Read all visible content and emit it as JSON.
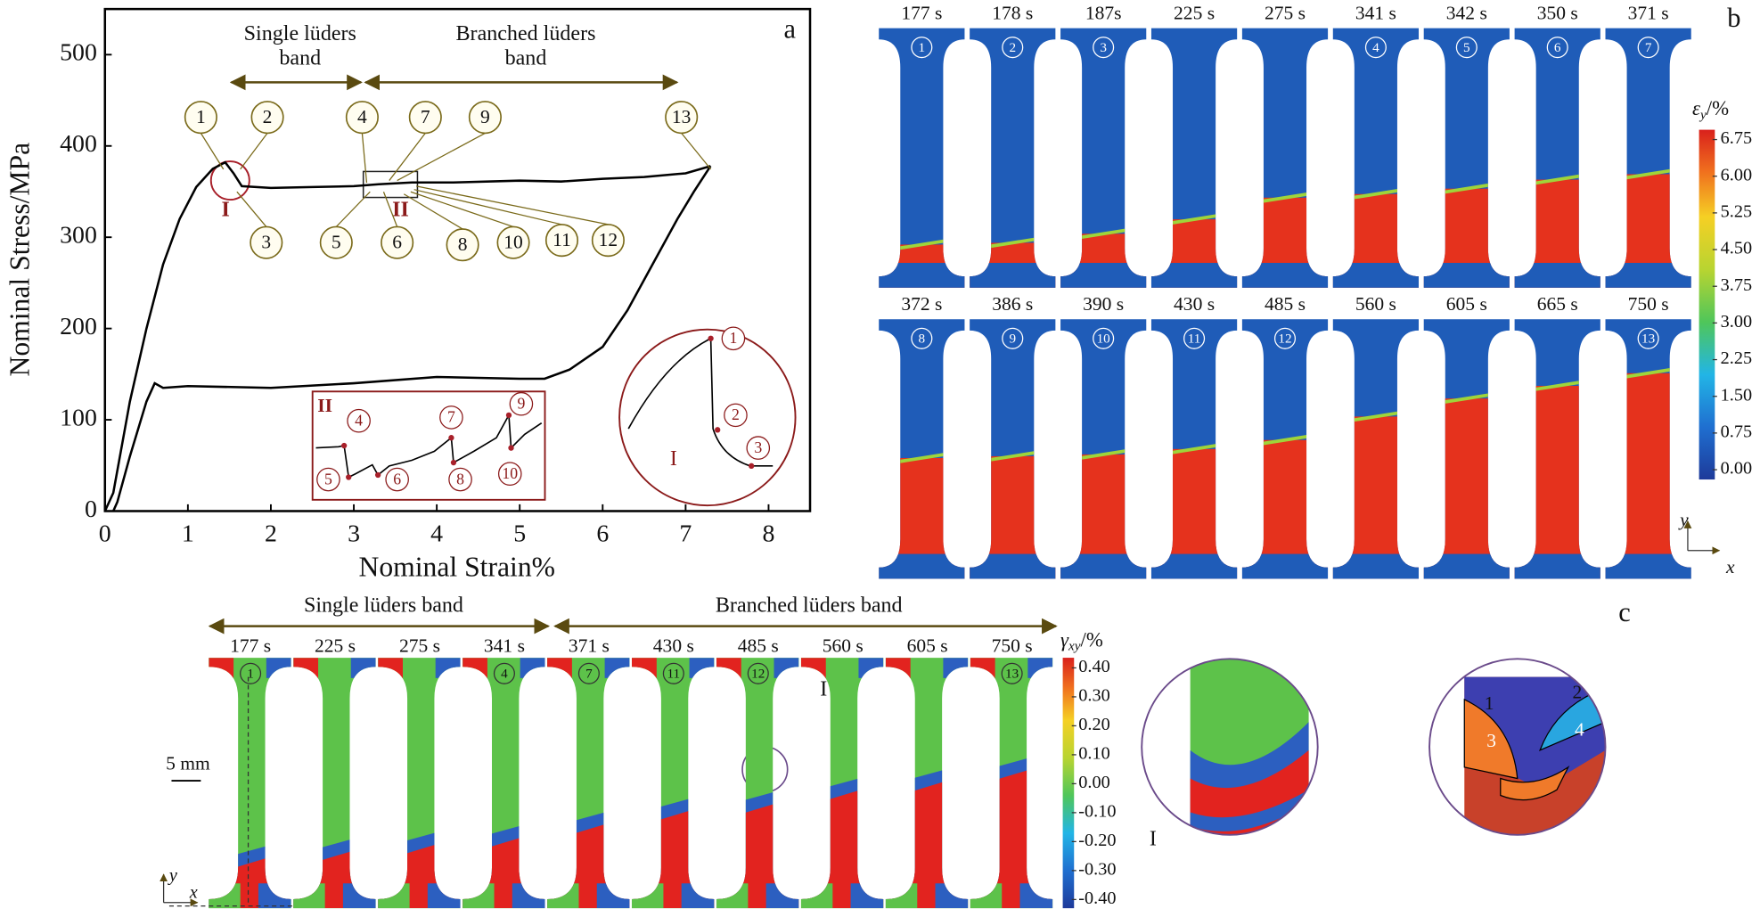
{
  "chart_data": {
    "type": "line",
    "panel_label": "a",
    "xlabel": "Nominal Strain%",
    "ylabel": "Nominal Stress/MPa",
    "xlim": [
      0,
      8.5
    ],
    "xticks": [
      0,
      1,
      2,
      3,
      4,
      5,
      6,
      7,
      8
    ],
    "ylim": [
      0,
      550
    ],
    "yticks": [
      0,
      100,
      200,
      300,
      400,
      500
    ],
    "series": [
      {
        "color": "#000000",
        "x": [
          0,
          0.1,
          0.3,
          0.5,
          0.7,
          0.9,
          1.1,
          1.3,
          1.45,
          1.55,
          1.65,
          2,
          2.5,
          3,
          3.3,
          3.7,
          4.2,
          5,
          5.5,
          6,
          6.5,
          7,
          7.3
        ],
        "values": [
          0,
          20,
          120,
          200,
          270,
          320,
          355,
          375,
          382,
          370,
          356,
          354,
          355,
          356,
          358,
          360,
          360,
          362,
          361,
          364,
          366,
          370,
          378
        ]
      },
      {
        "color": "#000000",
        "x": [
          0.1,
          0.15,
          0.3,
          0.5,
          0.6,
          0.7,
          1,
          2,
          3,
          4,
          5,
          5.3,
          5.6,
          6,
          6.3,
          6.6,
          6.9,
          7.1,
          7.3
        ],
        "values": [
          0,
          10,
          60,
          120,
          140,
          135,
          137,
          135,
          140,
          147,
          145,
          145,
          155,
          180,
          220,
          270,
          320,
          350,
          378
        ]
      }
    ],
    "band_labels": [
      [
        "Single lüders",
        "band"
      ],
      [
        "Branched lüders",
        "band"
      ]
    ],
    "stage_markers": [
      "1",
      "2",
      "3",
      "4",
      "5",
      "6",
      "7",
      "8",
      "9",
      "10",
      "11",
      "12",
      "13"
    ],
    "zoom_labels": [
      "I",
      "II"
    ],
    "inset_II": {
      "label": "II",
      "markers": [
        "4",
        "5",
        "6",
        "7",
        "8",
        "9",
        "10"
      ]
    },
    "inset_I": {
      "label": "I",
      "markers": [
        "1",
        "2",
        "3"
      ]
    }
  },
  "panel_b": {
    "label": "b",
    "frames": [
      {
        "time": "177 s",
        "marker": "1"
      },
      {
        "time": "178 s",
        "marker": "2"
      },
      {
        "time": "187s",
        "marker": "3"
      },
      {
        "time": "225 s"
      },
      {
        "time": "275 s"
      },
      {
        "time": "341 s",
        "marker": "4"
      },
      {
        "time": "342 s",
        "marker": "5"
      },
      {
        "time": "350 s",
        "marker": "6"
      },
      {
        "time": "371 s",
        "marker": "7"
      },
      {
        "time": "372 s",
        "marker": "8"
      },
      {
        "time": "386 s",
        "marker": "9"
      },
      {
        "time": "390 s",
        "marker": "10"
      },
      {
        "time": "430 s",
        "marker": "11"
      },
      {
        "time": "485 s",
        "marker": "12"
      },
      {
        "time": "560 s"
      },
      {
        "time": "605 s"
      },
      {
        "time": "665 s"
      },
      {
        "time": "750 s",
        "marker": "13"
      }
    ],
    "colorbar": {
      "label": "ε",
      "label_sub": "y",
      "label_unit": "/%",
      "clim": [
        -0.2,
        6.95
      ],
      "ticks": [
        {
          "value": 0,
          "label": "0.00"
        },
        0.75,
        {
          "value": 1.5,
          "label": "1.50"
        },
        2.25,
        {
          "value": 3,
          "label": "3.00"
        },
        3.75,
        {
          "value": 4.5,
          "label": "4.50"
        },
        5.25,
        {
          "value": 6,
          "label": "6.00"
        },
        6.75
      ]
    },
    "axes": {
      "y": "y",
      "x": "x"
    }
  },
  "panel_c": {
    "label": "c",
    "band_labels": [
      "Single lüders band",
      "Branched lüders band"
    ],
    "frames": [
      {
        "time": "177 s",
        "marker": "1"
      },
      {
        "time": "225 s"
      },
      {
        "time": "275 s"
      },
      {
        "time": "341 s",
        "marker": "4"
      },
      {
        "time": "371 s",
        "marker": "7"
      },
      {
        "time": "430 s",
        "marker": "11"
      },
      {
        "time": "485 s",
        "marker": "12"
      },
      {
        "time": "560 s"
      },
      {
        "time": "605 s"
      },
      {
        "time": "750 s",
        "marker": "13"
      }
    ],
    "colorbar": {
      "label": "γ",
      "label_sub": "xy",
      "label_unit": "/%",
      "clim": [
        -0.43,
        0.435
      ],
      "ticks": [
        {
          "value": 0.4,
          "label": "0.40"
        },
        {
          "value": 0.3,
          "label": "0.30"
        },
        {
          "value": 0.2,
          "label": "0.20"
        },
        {
          "value": 0.1,
          "label": "0.10"
        },
        {
          "value": 0,
          "label": "0.00"
        },
        {
          "value": -0.1,
          "label": "-0.10"
        },
        {
          "value": -0.2,
          "label": "-0.20"
        },
        {
          "value": -0.3,
          "label": "-0.30"
        },
        {
          "value": -0.4,
          "label": "-0.40"
        }
      ]
    },
    "scale_bar": "5 mm",
    "zoom_label": "I",
    "zoom_circle_label": "I",
    "schematic_labels": [
      "1",
      "2",
      "3",
      "4"
    ],
    "axes": {
      "y": "y",
      "x": "x"
    }
  }
}
